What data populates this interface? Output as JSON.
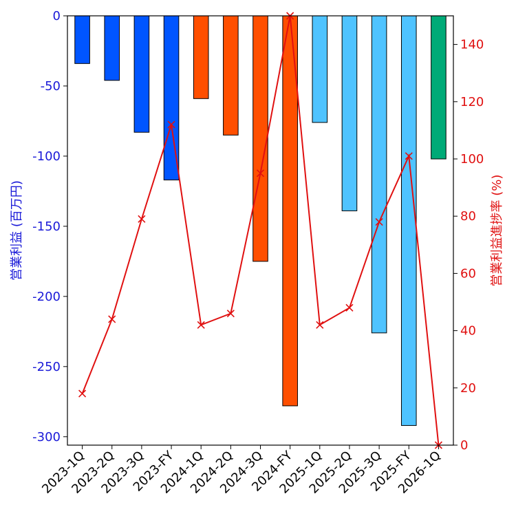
{
  "chart_data": {
    "type": "bar",
    "title": "",
    "xlabel": "",
    "categories": [
      "2023-1Q",
      "2023-2Q",
      "2023-3Q",
      "2023-FY",
      "2024-1Q",
      "2024-2Q",
      "2024-3Q",
      "2024-FY",
      "2025-1Q",
      "2025-2Q",
      "2025-3Q",
      "2025-FY",
      "2026-1Q"
    ],
    "series": [
      {
        "name": "営業利益 (百万円)",
        "axis": "left",
        "type": "bar",
        "values": [
          -34,
          -46,
          -83,
          -117,
          -59,
          -85,
          -175,
          -278,
          -76,
          -139,
          -226,
          -292,
          -102
        ],
        "colors": [
          "#0055ff",
          "#0055ff",
          "#0055ff",
          "#0055ff",
          "#ff4f00",
          "#ff4f00",
          "#ff4f00",
          "#ff4f00",
          "#4fc3ff",
          "#4fc3ff",
          "#4fc3ff",
          "#4fc3ff",
          "#00aa77"
        ]
      },
      {
        "name": "営業利益進捗率 (%)",
        "axis": "right",
        "type": "line",
        "marker": "x",
        "color": "#e01010",
        "values": [
          18,
          44,
          79,
          112,
          42,
          46,
          95,
          150,
          42,
          48,
          78,
          101,
          0
        ]
      }
    ],
    "y_left": {
      "label": "営業利益 (百万円)",
      "ylim": [
        -306,
        0
      ],
      "ticks": [
        0,
        -50,
        -100,
        -150,
        -200,
        -250,
        -300
      ],
      "color": "#1a1ad8"
    },
    "y_right": {
      "label": "営業利益進捗率 (%)",
      "ylim": [
        0,
        150
      ],
      "ticks": [
        0,
        20,
        40,
        60,
        80,
        100,
        120,
        140
      ],
      "color": "#e01010"
    },
    "grid": false
  }
}
